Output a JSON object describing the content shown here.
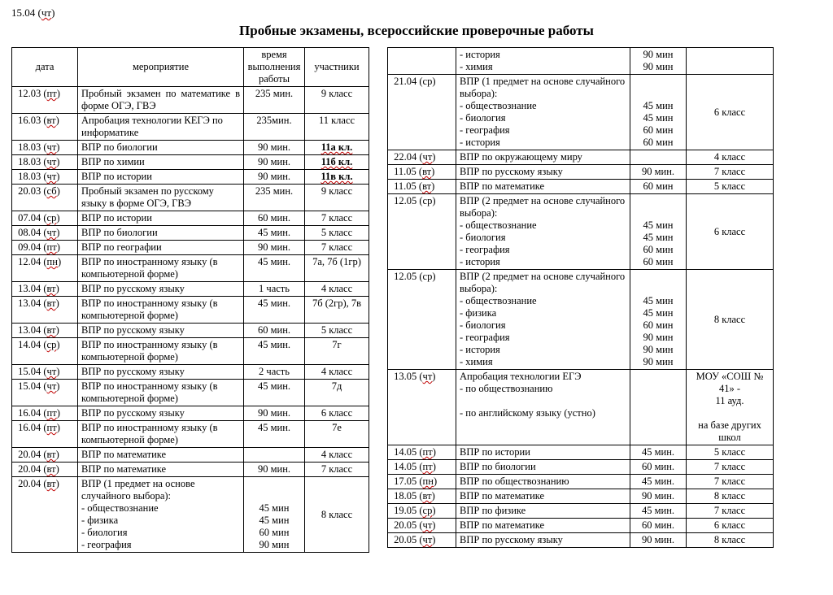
{
  "top_date_text": "15.04 (",
  "top_date_abbr": "чт",
  "top_date_close": ")",
  "title": "Пробные экзамены, всероссийские проверочные работы",
  "headers": {
    "date": "дата",
    "event": "мероприятие",
    "time": "время выполнения работы",
    "participants": "участники"
  },
  "left_rows": [
    {
      "n": 1,
      "date_d": "12.03",
      "day": "пт",
      "event": "Пробный экзамен по математике в форме ОГЭ, ГВЭ",
      "event_justify": true,
      "time": "235 мин.",
      "part": "9 класс"
    },
    {
      "n": 2,
      "date_d": "16.03",
      "day": "вт",
      "event": "Апробация технологии КЕГЭ по информатике",
      "time": "235мин.",
      "part": "11 класс"
    },
    {
      "n": 3,
      "date_d": "18.03",
      "day": "чт",
      "event": "ВПР по биологии",
      "time": "90 мин.",
      "part": "11а кл.",
      "part_bold": true,
      "part_squig": true
    },
    {
      "n": 4,
      "date_d": "18.03",
      "day": "чт",
      "event": "ВПР по химии",
      "time": "90 мин.",
      "part": "11б кл.",
      "part_bold": true,
      "part_squig": true
    },
    {
      "n": 5,
      "date_d": "18.03",
      "day": "чт",
      "event": "ВПР по истории",
      "time": "90 мин.",
      "part": "11в кл.",
      "part_bold": true,
      "part_squig": true
    },
    {
      "n": 6,
      "date_d": "20.03",
      "day": "сб",
      "event": "Пробный экзамен по русскому языку в форме ОГЭ, ГВЭ",
      "time": "235 мин.",
      "part": "9 класс"
    },
    {
      "n": 7,
      "date_d": "07.04",
      "day": "ср",
      "event": "ВПР по истории",
      "time": "60 мин.",
      "part": "7 класс"
    },
    {
      "n": 8,
      "date_d": "08.04",
      "day": "чт",
      "event": "ВПР по биологии",
      "time": "45 мин.",
      "part": "5 класс"
    },
    {
      "n": 9,
      "date_d": "09.04",
      "day": "пт",
      "event": "ВПР  по географии",
      "time": "90 мин.",
      "part": "7 класс"
    },
    {
      "n": 10,
      "date_d": "12.04",
      "day": "пн",
      "event": "ВПР по иностранному языку (в компьютерной форме)",
      "time": "45 мин.",
      "part": "7а, 7б (1гр)"
    },
    {
      "n": 11,
      "date_d": "13.04",
      "day": "вт",
      "event": "ВПР по русскому языку",
      "time": "1 часть",
      "part": "4 класс"
    },
    {
      "n": 12,
      "date_d": "13.04",
      "day": "вт",
      "event": "ВПР по иностранному языку (в компьютерной форме)",
      "time": "45 мин.",
      "part": "7б (2гр), 7в"
    },
    {
      "n": 13,
      "date_d": "13.04",
      "day": "вт",
      "event": "ВПР по русскому языку",
      "time": "60 мин.",
      "part": "5 класс"
    },
    {
      "n": 14,
      "date_d": "14.04",
      "day": "ср",
      "event": "ВПР по иностранному языку (в компьютерной форме)",
      "time": "45 мин.",
      "part": "7г"
    },
    {
      "n": 15,
      "date_d": "15.04",
      "day": "чт",
      "event": "ВПР по русскому языку",
      "time": "2 часть",
      "part": "4 класс"
    },
    {
      "n": 16,
      "date_d": "15.04",
      "day": "чт",
      "event": "ВПР по иностранному языку (в компьютерной форме)",
      "time": "45 мин.",
      "part": "7д"
    },
    {
      "n": 17,
      "date_d": "16.04",
      "day": "пт",
      "event": "ВПР по русскому языку",
      "time": "90 мин.",
      "part": "6 класс"
    },
    {
      "n": 18,
      "date_d": "16.04",
      "day": "пт",
      "event": "ВПР по иностранному языку (в компьютерной форме)",
      "time": "45 мин.",
      "part": "7е"
    },
    {
      "n": 19,
      "date_d": "20.04",
      "day": "вт",
      "event": "ВПР по математике",
      "time": "",
      "part": "4 класс"
    },
    {
      "n": 20,
      "date_d": "20.04",
      "day": "вт",
      "event": "ВПР по математике",
      "time": "90 мин.",
      "part": "7 класс"
    }
  ],
  "left_block": {
    "date_d": "20.04",
    "day": "вт",
    "intro": "ВПР (1 предмет на основе случайного выбора):",
    "lines": [
      {
        "name": "- обществознание",
        "time": "45 мин"
      },
      {
        "name": "- физика",
        "time": "45 мин"
      },
      {
        "name": "- биология",
        "time": "60 мин"
      },
      {
        "name": "- география",
        "time": "90 мин"
      }
    ],
    "part": "8 класс"
  },
  "right_pre": {
    "lines": [
      {
        "name": "- история",
        "time": "90 мин"
      },
      {
        "name": "- химия",
        "time": "90 мин"
      }
    ]
  },
  "right_block1": {
    "date_d": "21.04",
    "day": "ср",
    "day_plain": true,
    "intro": "ВПР (1 предмет на основе случайного выбора):",
    "lines": [
      {
        "name": "- обществознание",
        "time": "45 мин"
      },
      {
        "name": "- биология",
        "time": "45 мин"
      },
      {
        "name": "- география",
        "time": "60 мин"
      },
      {
        "name": "- история",
        "time": "60 мин"
      }
    ],
    "part": "6 класс"
  },
  "right_rows_a": [
    {
      "n": 1,
      "date_d": "22.04",
      "day": "чт",
      "event": "ВПР по окружающему миру",
      "time": "",
      "part": "4 класс"
    },
    {
      "n": 2,
      "date_d": "11.05",
      "day": "вт",
      "event": "ВПР по русскому языку",
      "time": "90 мин.",
      "part": "7 класс"
    },
    {
      "n": 3,
      "date_d": "11.05",
      "day": "вт",
      "event": "ВПР по математике",
      "time": "60 мин",
      "part": "5 класс"
    }
  ],
  "right_block2": {
    "date_d": "12.05",
    "day": "ср",
    "day_plain": true,
    "intro": "ВПР (2 предмет на основе случайного выбора):",
    "lines": [
      {
        "name": "- обществознание",
        "time": "45 мин"
      },
      {
        "name": "- биология",
        "time": "45 мин"
      },
      {
        "name": "- география",
        "time": "60 мин"
      },
      {
        "name": "- история",
        "time": "60 мин"
      }
    ],
    "part": "6 класс"
  },
  "right_block3": {
    "date_d": "12.05",
    "day": "ср",
    "day_plain": true,
    "intro": "ВПР (2 предмет на основе случайного выбора):",
    "lines": [
      {
        "name": "- обществознание",
        "time": "45 мин"
      },
      {
        "name": "- физика",
        "time": "45 мин"
      },
      {
        "name": "- биология",
        "time": "60 мин"
      },
      {
        "name": "- география",
        "time": "90 мин"
      },
      {
        "name": "- история",
        "time": "90 мин"
      },
      {
        "name": "- химия",
        "time": "90 мин"
      }
    ],
    "part": "8 класс"
  },
  "right_block4": {
    "date_d": "13.05",
    "day": "чт",
    "event_lines": [
      "Апробация технологии ЕГЭ",
      "- по обществознанию",
      " ",
      "- по английскому языку (устно)"
    ],
    "part_lines": [
      "МОУ «СОШ № 41» -",
      "11 ауд.",
      " ",
      "на базе других школ"
    ]
  },
  "right_rows_b": [
    {
      "n": 1,
      "date_d": "14.05",
      "day": "пт",
      "event": "ВПР по истории",
      "time": "45 мин.",
      "part": "5 класс"
    },
    {
      "n": 2,
      "date_d": "14.05",
      "day": "пт",
      "event": "ВПР по биологии",
      "time": "60 мин.",
      "part": "7 класс"
    },
    {
      "n": 3,
      "date_d": "17.05",
      "day": "пн",
      "event": "ВПР по обществознанию",
      "time": "45 мин.",
      "part": "7 класс"
    },
    {
      "n": 4,
      "date_d": "18.05",
      "day": "вт",
      "event": "ВПР по математике",
      "time": "90 мин.",
      "part": "8 класс"
    },
    {
      "n": 5,
      "date_d": "19.05",
      "day": "ср",
      "event": "ВПР по физике",
      "time": "45 мин.",
      "part": "7 класс"
    },
    {
      "n": 6,
      "date_d": "20.05",
      "day": "чт",
      "event": "ВПР по математике",
      "time": "60 мин.",
      "part": "6 класс"
    },
    {
      "n": 7,
      "date_d": "20.05",
      "day": "чт",
      "event": "ВПР по русскому языку",
      "time": "90 мин.",
      "part": "8 класс"
    }
  ]
}
